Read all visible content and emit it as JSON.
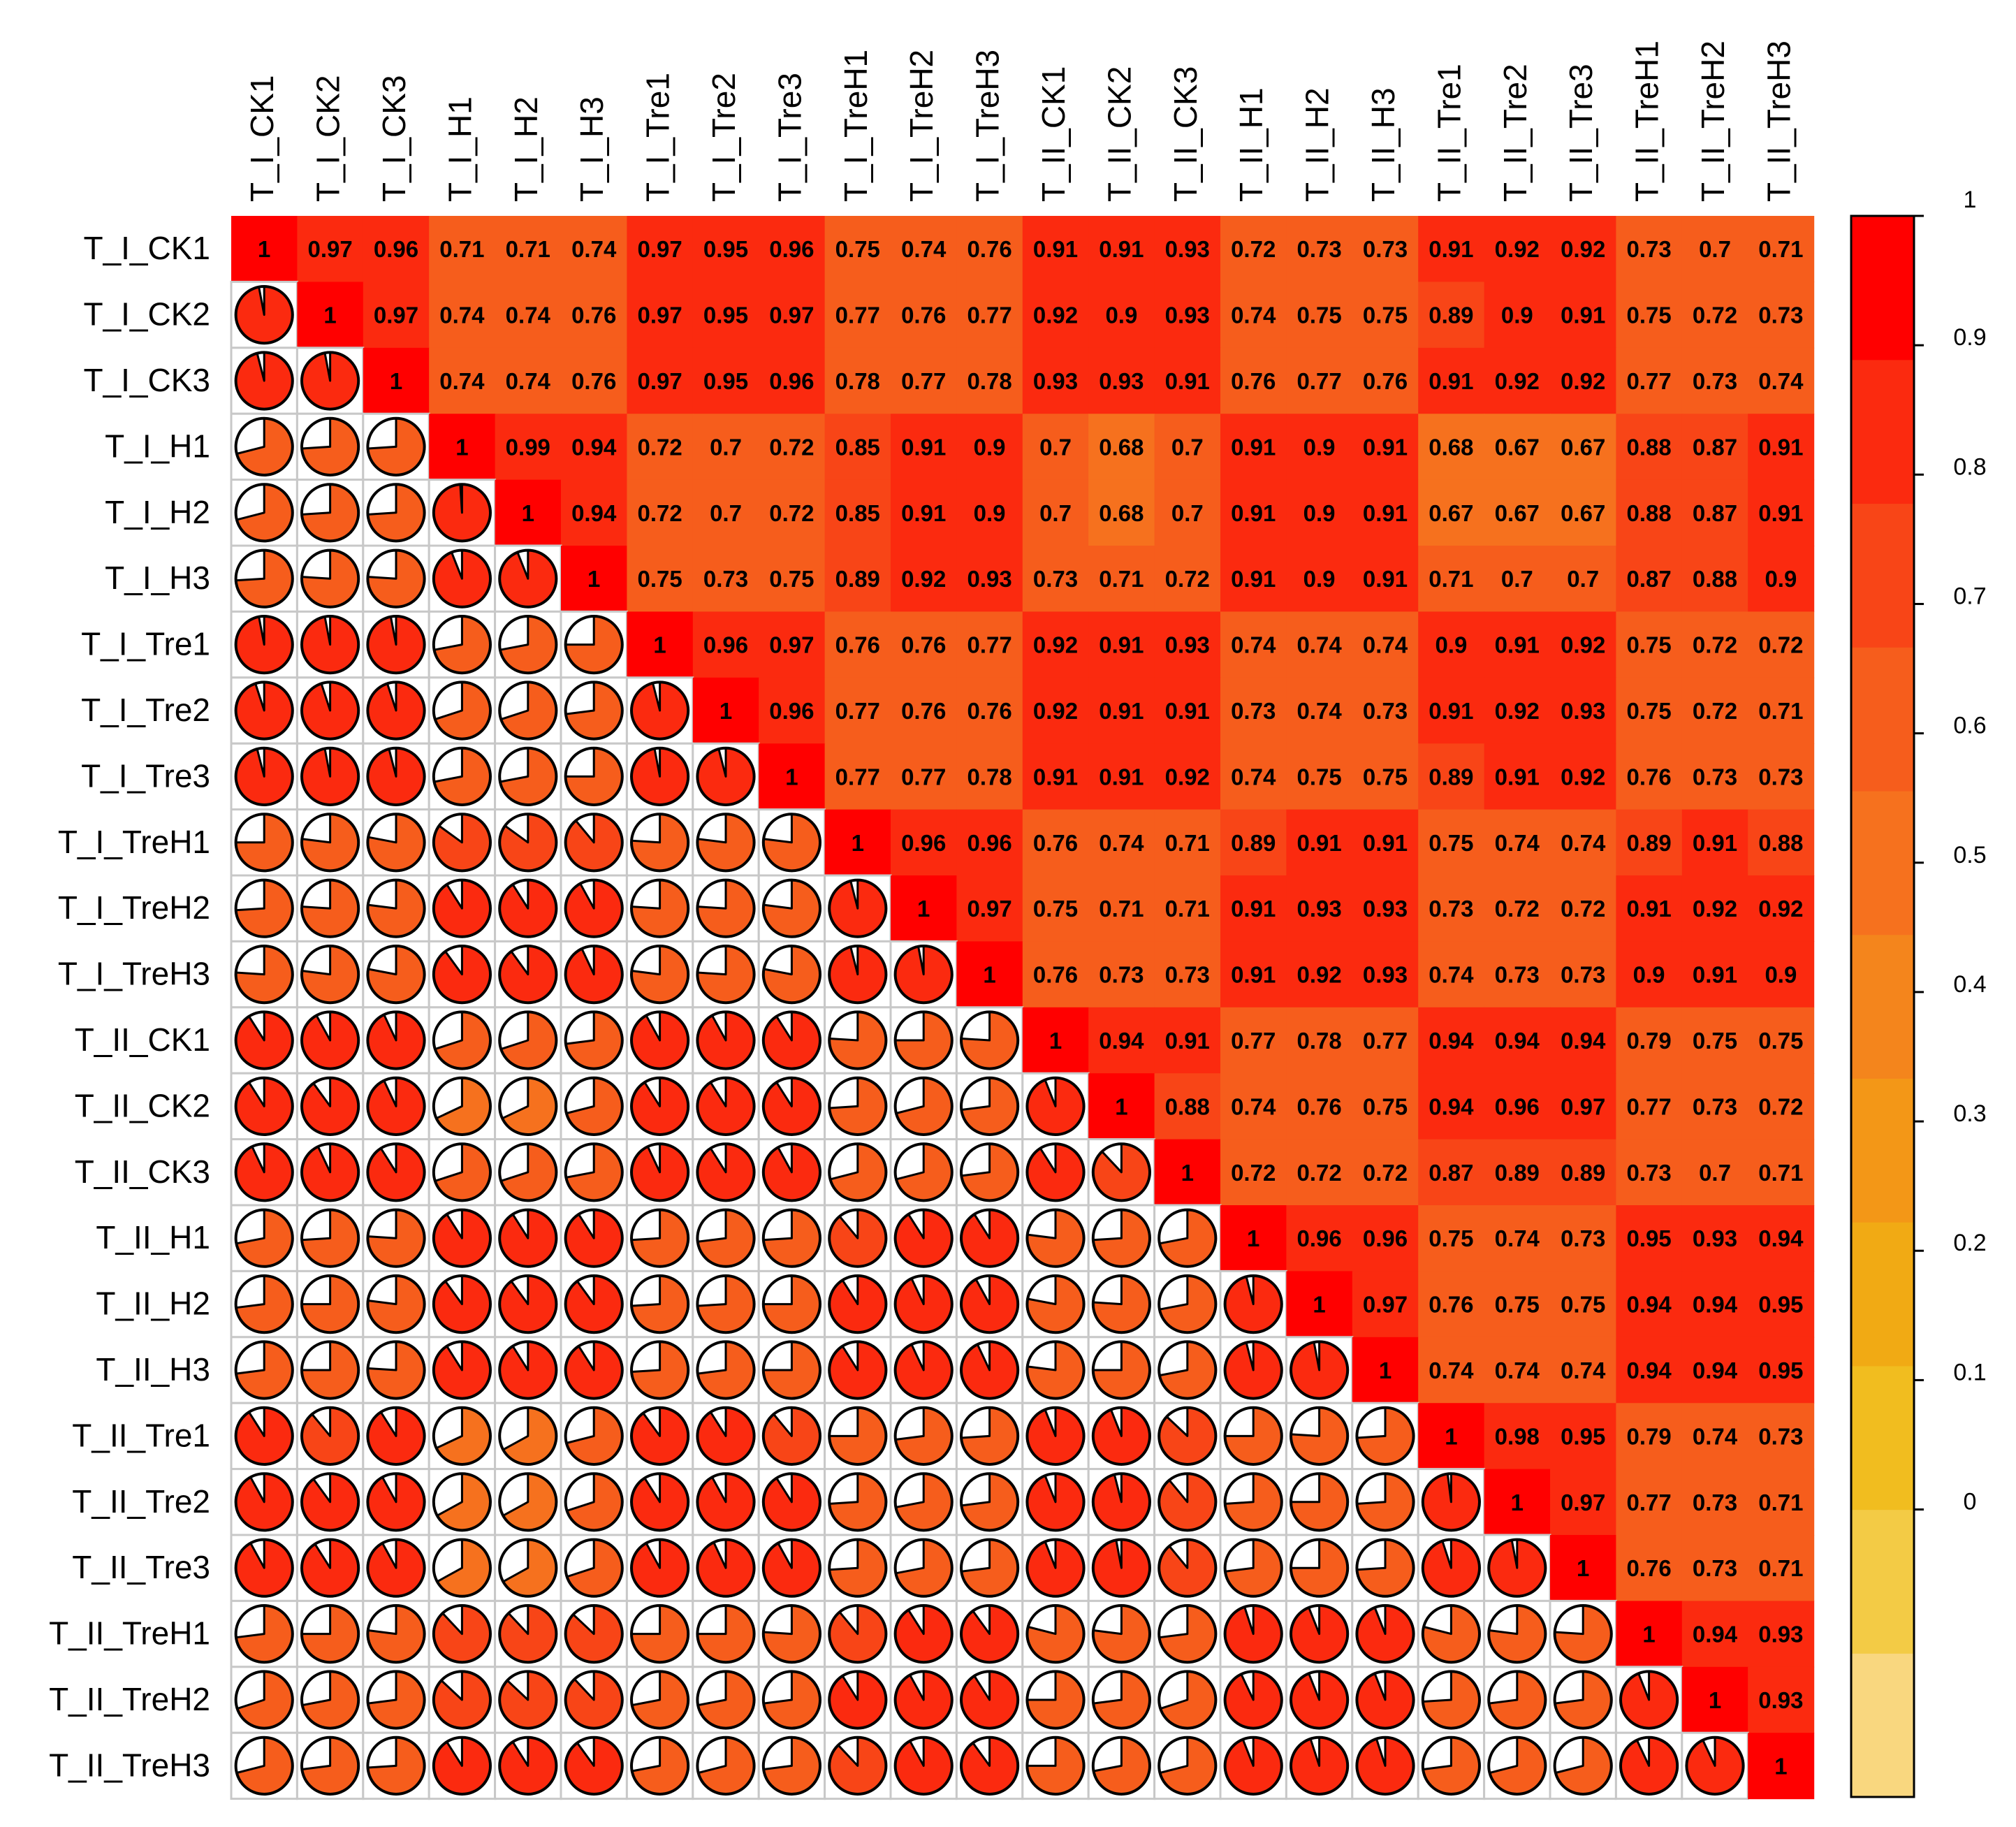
{
  "chart_data": {
    "type": "heatmap",
    "variant": "correlation matrix: upper triangle numeric coefficients on coloured cells, lower triangle pie glyphs",
    "title": "",
    "xlabel": "",
    "ylabel": "",
    "labels": [
      "T_I_CK1",
      "T_I_CK2",
      "T_I_CK3",
      "T_I_H1",
      "T_I_H2",
      "T_I_H3",
      "T_I_Tre1",
      "T_I_Tre2",
      "T_I_Tre3",
      "T_I_TreH1",
      "T_I_TreH2",
      "T_I_TreH3",
      "T_II_CK1",
      "T_II_CK2",
      "T_II_CK3",
      "T_II_H1",
      "T_II_H2",
      "T_II_H3",
      "T_II_Tre1",
      "T_II_Tre2",
      "T_II_Tre3",
      "T_II_TreH1",
      "T_II_TreH2",
      "T_II_TreH3"
    ],
    "upper_triangle": [
      [
        "1",
        "0.97",
        "0.96",
        "0.71",
        "0.71",
        "0.74",
        "0.97",
        "0.95",
        "0.96",
        "0.75",
        "0.74",
        "0.76",
        "0.91",
        "0.91",
        "0.93",
        "0.72",
        "0.73",
        "0.73",
        "0.91",
        "0.92",
        "0.92",
        "0.73",
        "0.7",
        "0.71"
      ],
      [
        "1",
        "0.97",
        "0.74",
        "0.74",
        "0.76",
        "0.97",
        "0.95",
        "0.97",
        "0.77",
        "0.76",
        "0.77",
        "0.92",
        "0.9",
        "0.93",
        "0.74",
        "0.75",
        "0.75",
        "0.89",
        "0.9",
        "0.91",
        "0.75",
        "0.72",
        "0.73"
      ],
      [
        "1",
        "0.74",
        "0.74",
        "0.76",
        "0.97",
        "0.95",
        "0.96",
        "0.78",
        "0.77",
        "0.78",
        "0.93",
        "0.93",
        "0.91",
        "0.76",
        "0.77",
        "0.76",
        "0.91",
        "0.92",
        "0.92",
        "0.77",
        "0.73",
        "0.74"
      ],
      [
        "1",
        "0.99",
        "0.94",
        "0.72",
        "0.7",
        "0.72",
        "0.85",
        "0.91",
        "0.9",
        "0.7",
        "0.68",
        "0.7",
        "0.91",
        "0.9",
        "0.91",
        "0.68",
        "0.67",
        "0.67",
        "0.88",
        "0.87",
        "0.91"
      ],
      [
        "1",
        "0.94",
        "0.72",
        "0.7",
        "0.72",
        "0.85",
        "0.91",
        "0.9",
        "0.7",
        "0.68",
        "0.7",
        "0.91",
        "0.9",
        "0.91",
        "0.67",
        "0.67",
        "0.67",
        "0.88",
        "0.87",
        "0.91"
      ],
      [
        "1",
        "0.75",
        "0.73",
        "0.75",
        "0.89",
        "0.92",
        "0.93",
        "0.73",
        "0.71",
        "0.72",
        "0.91",
        "0.9",
        "0.91",
        "0.71",
        "0.7",
        "0.7",
        "0.87",
        "0.88",
        "0.9"
      ],
      [
        "1",
        "0.96",
        "0.97",
        "0.76",
        "0.76",
        "0.77",
        "0.92",
        "0.91",
        "0.93",
        "0.74",
        "0.74",
        "0.74",
        "0.9",
        "0.91",
        "0.92",
        "0.75",
        "0.72",
        "0.72"
      ],
      [
        "1",
        "0.96",
        "0.77",
        "0.76",
        "0.76",
        "0.92",
        "0.91",
        "0.91",
        "0.73",
        "0.74",
        "0.73",
        "0.91",
        "0.92",
        "0.93",
        "0.75",
        "0.72",
        "0.71"
      ],
      [
        "1",
        "0.77",
        "0.77",
        "0.78",
        "0.91",
        "0.91",
        "0.92",
        "0.74",
        "0.75",
        "0.75",
        "0.89",
        "0.91",
        "0.92",
        "0.76",
        "0.73",
        "0.73"
      ],
      [
        "1",
        "0.96",
        "0.96",
        "0.76",
        "0.74",
        "0.71",
        "0.89",
        "0.91",
        "0.91",
        "0.75",
        "0.74",
        "0.74",
        "0.89",
        "0.91",
        "0.88"
      ],
      [
        "1",
        "0.97",
        "0.75",
        "0.71",
        "0.71",
        "0.91",
        "0.93",
        "0.93",
        "0.73",
        "0.72",
        "0.72",
        "0.91",
        "0.92",
        "0.92"
      ],
      [
        "1",
        "0.76",
        "0.73",
        "0.73",
        "0.91",
        "0.92",
        "0.93",
        "0.74",
        "0.73",
        "0.73",
        "0.9",
        "0.91",
        "0.9"
      ],
      [
        "1",
        "0.94",
        "0.91",
        "0.77",
        "0.78",
        "0.77",
        "0.94",
        "0.94",
        "0.94",
        "0.79",
        "0.75",
        "0.75"
      ],
      [
        "1",
        "0.88",
        "0.74",
        "0.76",
        "0.75",
        "0.94",
        "0.96",
        "0.97",
        "0.77",
        "0.73",
        "0.72"
      ],
      [
        "1",
        "0.72",
        "0.72",
        "0.72",
        "0.87",
        "0.89",
        "0.89",
        "0.73",
        "0.7",
        "0.71"
      ],
      [
        "1",
        "0.96",
        "0.96",
        "0.75",
        "0.74",
        "0.73",
        "0.95",
        "0.93",
        "0.94"
      ],
      [
        "1",
        "0.97",
        "0.76",
        "0.75",
        "0.75",
        "0.94",
        "0.94",
        "0.95"
      ],
      [
        "1",
        "0.74",
        "0.74",
        "0.74",
        "0.94",
        "0.94",
        "0.95"
      ],
      [
        "1",
        "0.98",
        "0.95",
        "0.79",
        "0.74",
        "0.73"
      ],
      [
        "1",
        "0.97",
        "0.77",
        "0.73",
        "0.71"
      ],
      [
        "1",
        "0.76",
        "0.73",
        "0.71"
      ],
      [
        "1",
        "0.94",
        "0.93"
      ],
      [
        "1",
        "0.93"
      ],
      [
        "1"
      ]
    ],
    "colorbar": {
      "range": [
        0,
        1
      ],
      "tick_labels": [
        "1",
        "0.9",
        "0.8",
        "0.7",
        "0.6",
        "0.5",
        "0.4",
        "0.3",
        "0.2",
        "0.1",
        "0"
      ],
      "colors_low_to_high": [
        "#f9d77f",
        "#f3cb45",
        "#f1bd1f",
        "#f1aa14",
        "#f39717",
        "#f4851c",
        "#f6711e",
        "#f65d1c",
        "#f84517",
        "#fb2a0f",
        "#ff0000"
      ]
    },
    "grid": true,
    "legend": "right"
  }
}
